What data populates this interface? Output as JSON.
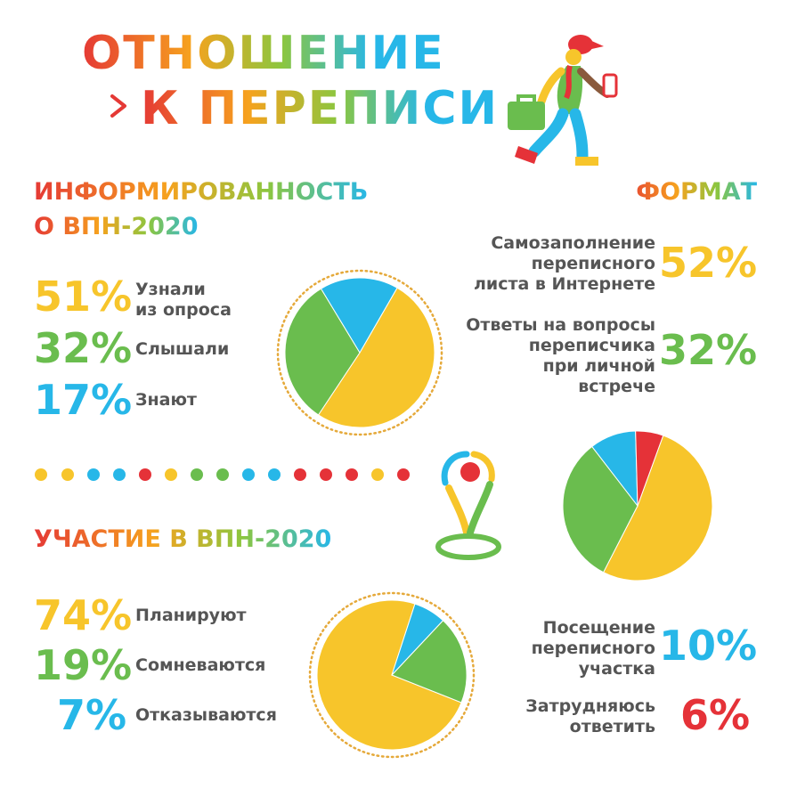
{
  "header": {
    "title_line1": "ОТНОШЕНИЕ",
    "title_line2": "К ПЕРЕПИСИ"
  },
  "colors": {
    "yellow": "#f7c52b",
    "green": "#6abd4e",
    "blue": "#27b7e8",
    "red": "#e53238",
    "text": "#555555"
  },
  "awareness": {
    "heading1": "ИНФОРМИРОВАННОСТЬ",
    "heading2": "О ВПН-2020",
    "items": [
      {
        "value": "51%",
        "label1": "Узнали",
        "label2": "из опроса"
      },
      {
        "value": "32%",
        "label1": "Слышали"
      },
      {
        "value": "17%",
        "label1": "Знают"
      }
    ]
  },
  "participation": {
    "heading": "УЧАСТИЕ В ВПН-2020",
    "items": [
      {
        "value": "74%",
        "label1": "Планируют"
      },
      {
        "value": "19%",
        "label1": "Сомневаются"
      },
      {
        "value": "7%",
        "label1": "Отказываются"
      }
    ]
  },
  "format": {
    "heading": "ФОРМАТ",
    "items": [
      {
        "value": "52%",
        "lines": [
          "Самозаполнение",
          "переписного",
          "листа в Интернете"
        ]
      },
      {
        "value": "32%",
        "lines": [
          "Ответы на вопросы",
          "переписчика",
          "при личной",
          "встрече"
        ]
      },
      {
        "value": "10%",
        "lines": [
          "Посещение",
          "переписного",
          "участка"
        ]
      },
      {
        "value": "6%",
        "lines": [
          "Затрудняюсь",
          "ответить"
        ]
      }
    ]
  },
  "chart_data": [
    {
      "type": "pie",
      "title": "ИНФОРМИРОВАННОСТЬ О ВПН-2020",
      "categories": [
        "Узнали из опроса",
        "Слышали",
        "Знают"
      ],
      "values": [
        51,
        32,
        17
      ],
      "colors": [
        "#f7c52b",
        "#6abd4e",
        "#27b7e8"
      ]
    },
    {
      "type": "pie",
      "title": "ФОРМАТ",
      "categories": [
        "Самозаполнение переписного листа в Интернете",
        "Ответы на вопросы переписчика при личной встрече",
        "Посещение переписного участка",
        "Затрудняюсь ответить"
      ],
      "values": [
        52,
        32,
        10,
        6
      ],
      "colors": [
        "#f7c52b",
        "#6abd4e",
        "#27b7e8",
        "#e53238"
      ]
    },
    {
      "type": "pie",
      "title": "УЧАСТИЕ В ВПН-2020",
      "categories": [
        "Планируют",
        "Сомневаются",
        "Отказываются"
      ],
      "values": [
        74,
        19,
        7
      ],
      "colors": [
        "#f7c52b",
        "#6abd4e",
        "#27b7e8"
      ]
    }
  ]
}
